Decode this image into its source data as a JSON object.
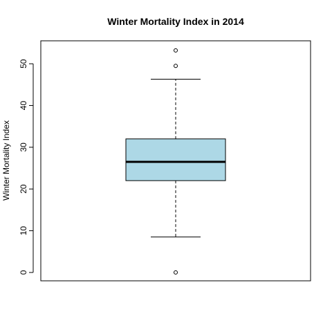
{
  "chart_data": {
    "type": "box",
    "title": "Winter Mortality Index in 2014",
    "ylabel": "Winter Mortality Index",
    "xlabel": "",
    "ylim": [
      -2,
      55.5
    ],
    "yticks": [
      0,
      10,
      20,
      30,
      40,
      50
    ],
    "grid": false,
    "box": {
      "min_whisker": 8.5,
      "q1": 22,
      "median": 26.5,
      "q3": 32,
      "max_whisker": 46.3,
      "outliers": [
        53.2,
        49.5,
        0
      ],
      "fill_color": "#ADD8E6"
    }
  }
}
